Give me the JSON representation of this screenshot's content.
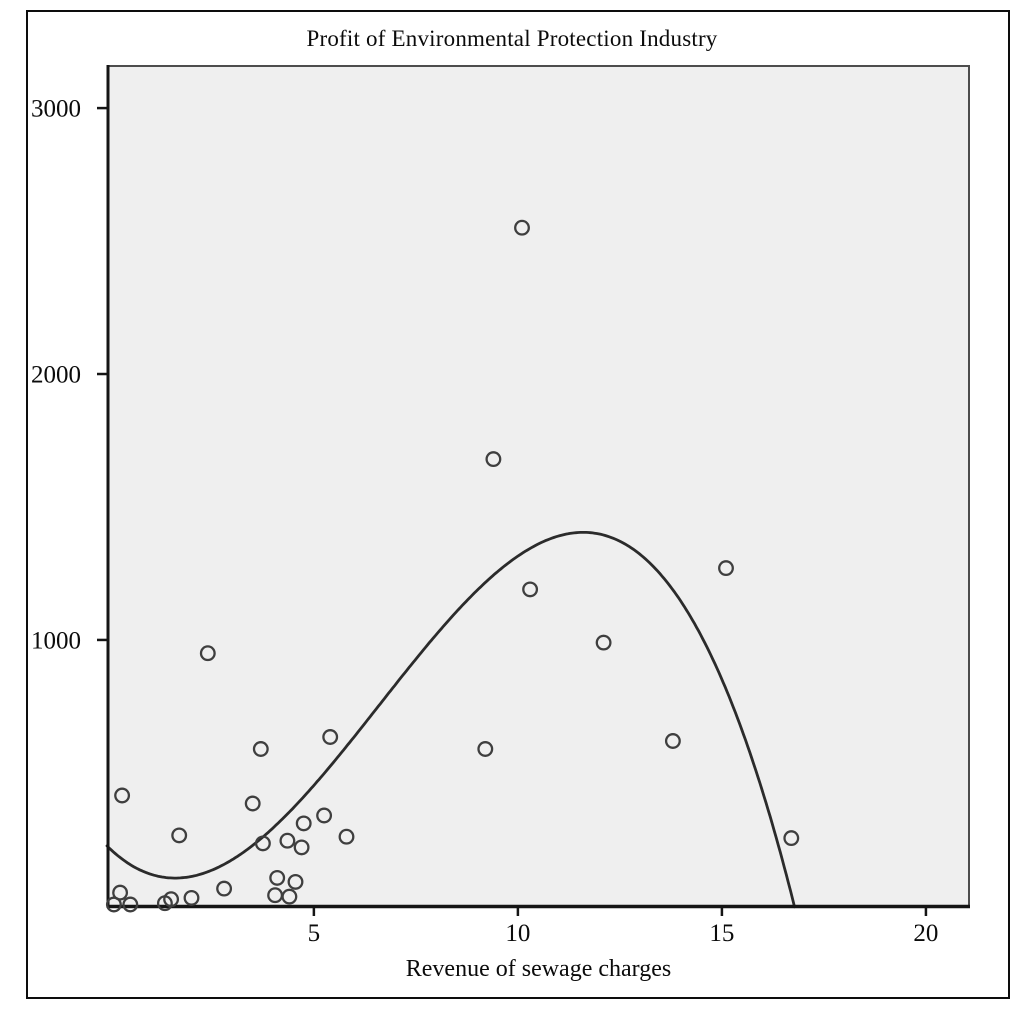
{
  "chart_data": {
    "type": "scatter",
    "title": "Profit of Environmental Protection Industry",
    "xlabel": "Revenue of sewage charges",
    "ylabel": "",
    "x_ticks": [
      5,
      10,
      15,
      20
    ],
    "y_ticks": [
      1000,
      2000,
      3000
    ],
    "xlim": [
      -0.07,
      21.08
    ],
    "ylim": [
      -8,
      3162
    ],
    "grid": false,
    "legend": "none",
    "marker": "open-circle",
    "points": [
      [
        0.1,
        5
      ],
      [
        0.25,
        50
      ],
      [
        0.3,
        415
      ],
      [
        0.5,
        5
      ],
      [
        1.35,
        10
      ],
      [
        1.5,
        25
      ],
      [
        1.7,
        265
      ],
      [
        2.0,
        30
      ],
      [
        2.4,
        950
      ],
      [
        2.8,
        65
      ],
      [
        3.5,
        385
      ],
      [
        3.7,
        590
      ],
      [
        3.75,
        235
      ],
      [
        4.05,
        40
      ],
      [
        4.1,
        105
      ],
      [
        4.35,
        245
      ],
      [
        4.4,
        35
      ],
      [
        4.55,
        90
      ],
      [
        4.7,
        220
      ],
      [
        4.75,
        310
      ],
      [
        5.25,
        340
      ],
      [
        5.4,
        635
      ],
      [
        5.8,
        260
      ],
      [
        9.2,
        590
      ],
      [
        9.4,
        1680
      ],
      [
        10.1,
        2550
      ],
      [
        10.3,
        1190
      ],
      [
        12.1,
        990
      ],
      [
        13.8,
        620
      ],
      [
        15.1,
        1270
      ],
      [
        16.7,
        255
      ]
    ],
    "fit_curve": {
      "type": "cubic-polynomial",
      "equation": "y = -2.6x^3 + 51.48x^2 - 144.77x + 215",
      "coefficients": {
        "a3": -2.6,
        "a2": 51.48,
        "a1": -144.768,
        "a0": 215
      },
      "local_min": [
        1.6,
        105
      ],
      "local_max": [
        11.6,
        1405
      ],
      "x_start": -0.07,
      "x_end": 17.2
    },
    "colors": {
      "plot_background": "#efefef",
      "page_background": "#ffffff",
      "point_stroke": "#3f3f3f",
      "curve": "#2b2b2b",
      "axis": "#151515",
      "plot_border": "#4d4d4d",
      "frame": "#0d0d0d",
      "text": "#0b0b0b"
    }
  }
}
